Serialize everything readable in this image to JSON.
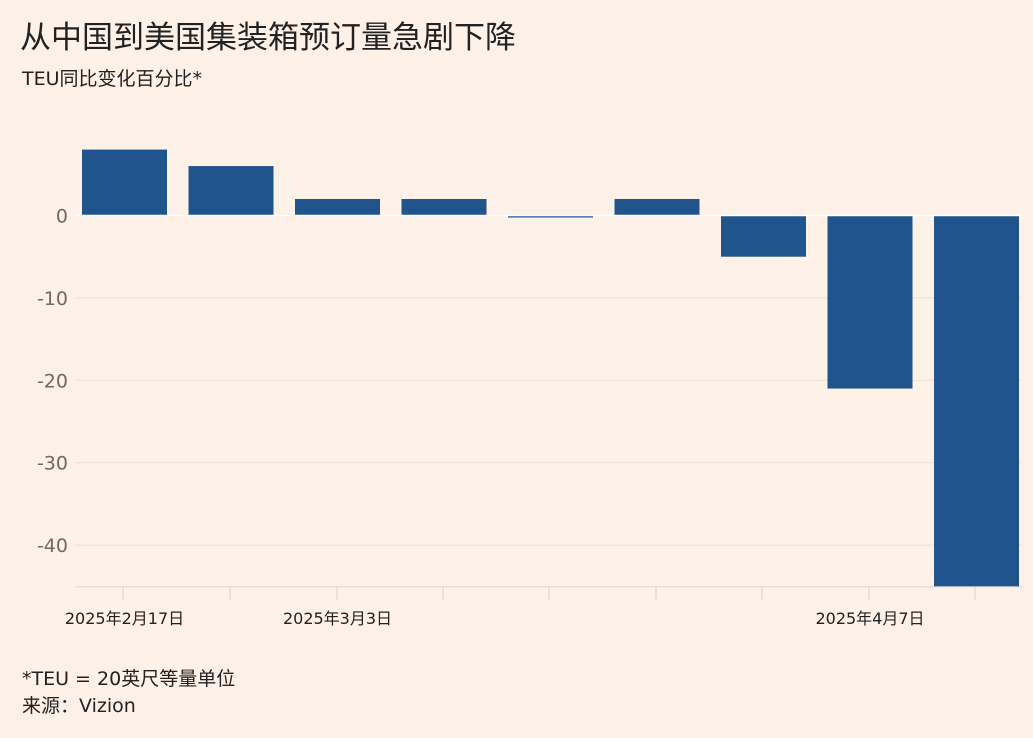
{
  "header": {
    "title": "从中国到美国集装箱预订量急剧下降",
    "subtitle": "TEU同比变化百分比*"
  },
  "footer": {
    "footnote": "*TEU = 20英尺等量单位",
    "source": "来源：Vizion"
  },
  "colors": {
    "bar": "#1f548d",
    "grid": "#ecdfd6",
    "axis_text": "#6e6a66",
    "zero_line": "#ffffff"
  },
  "chart_data": {
    "type": "bar",
    "title": "从中国到美国集装箱预订量急剧下降",
    "subtitle": "TEU同比变化百分比*",
    "categories": [
      "2025年2月17日",
      "",
      "2025年3月3日",
      "",
      "",
      "",
      "",
      "2025年4月7日",
      ""
    ],
    "values": [
      8,
      6,
      2,
      2,
      -0.2,
      2,
      -5,
      -21,
      -45
    ],
    "ylim": [
      -45,
      9
    ],
    "yticks": [
      0,
      -10,
      -20,
      -30,
      -40
    ],
    "ytick_labels": [
      "0",
      "-10",
      "-20",
      "-30",
      "-40"
    ],
    "xtick_labels": [
      {
        "index": 0,
        "label": "2025年2月17日"
      },
      {
        "index": 2,
        "label": "2025年3月3日"
      },
      {
        "index": 7,
        "label": "2025年4月7日"
      }
    ],
    "grid": true,
    "legend": "none"
  }
}
